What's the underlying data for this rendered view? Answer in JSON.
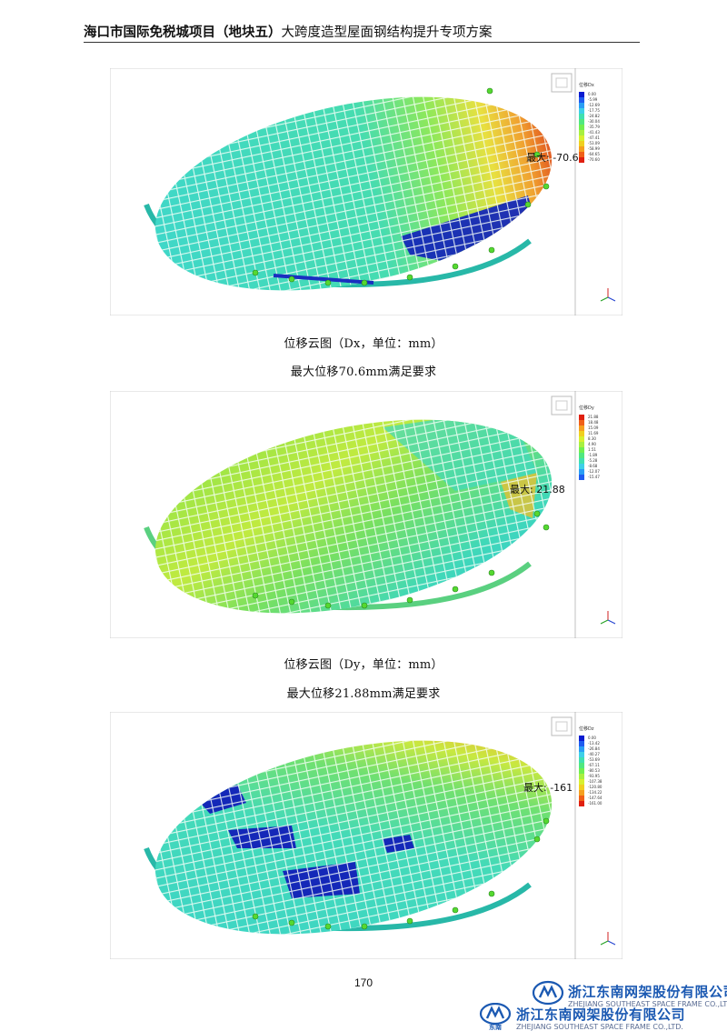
{
  "header": {
    "title_bold": "海口市国际免税城项目（地块五）",
    "title_rest": "大跨度造型屋面钢结构提升专项方案"
  },
  "figures": [
    {
      "id": "dx",
      "max_label": "最大: -70.6",
      "legend_title": "位移Dx",
      "legend_values": [
        "0.00",
        "-5.99",
        "-12.69",
        "-17.75",
        "-24.82",
        "-30.04",
        "-35.79",
        "-41.43",
        "-47.41",
        "-53.09",
        "-58.99",
        "-64.65",
        "-70.60"
      ],
      "legend_colors": [
        "#0a1bd0",
        "#1f5cf0",
        "#2a9ef5",
        "#3ed0e8",
        "#40e0b0",
        "#50e880",
        "#70ef50",
        "#a8f040",
        "#d8f030",
        "#f0d020",
        "#f5a020",
        "#f06018",
        "#e02010"
      ],
      "caption": "位移云图（Dx，单位：mm）",
      "conclusion": "最大位移70.6mm满足要求"
    },
    {
      "id": "dy",
      "max_label": "最大: 21.88",
      "legend_title": "位移Dy",
      "legend_values": [
        "21.88",
        "18.48",
        "15.09",
        "11.69",
        "8.30",
        "4.90",
        "1.51",
        "-1.89",
        "-5.28",
        "-8.68",
        "-12.07",
        "-15.47"
      ],
      "legend_colors": [
        "#e02010",
        "#f06018",
        "#f5a020",
        "#f0d020",
        "#d8f030",
        "#a8f040",
        "#70ef50",
        "#50e880",
        "#40e0b0",
        "#3ed0e8",
        "#2a9ef5",
        "#1f5cf0"
      ],
      "caption": "位移云图（Dy，单位：mm）",
      "conclusion": "最大位移21.88mm满足要求"
    },
    {
      "id": "dz",
      "max_label": "最大: -161",
      "legend_title": "位移Dz",
      "legend_values": [
        "0.00",
        "-13.42",
        "-26.84",
        "-40.27",
        "-53.69",
        "-67.11",
        "-80.53",
        "-93.95",
        "-107.38",
        "-120.80",
        "-134.22",
        "-147.64",
        "-161.00"
      ],
      "legend_colors": [
        "#0a1bd0",
        "#1f5cf0",
        "#2a9ef5",
        "#3ed0e8",
        "#40e0b0",
        "#50e880",
        "#70ef50",
        "#a8f040",
        "#d8f030",
        "#f0d020",
        "#f5a020",
        "#f06018",
        "#e02010"
      ],
      "caption": null,
      "conclusion": null
    }
  ],
  "page_number": "170",
  "company": {
    "name_cn": "浙江东南网架股份有限公司",
    "name_en": "ZHEJIANG SOUTHEAST SPACE FRAME CO.,LTD.",
    "mark_label": "东南"
  }
}
